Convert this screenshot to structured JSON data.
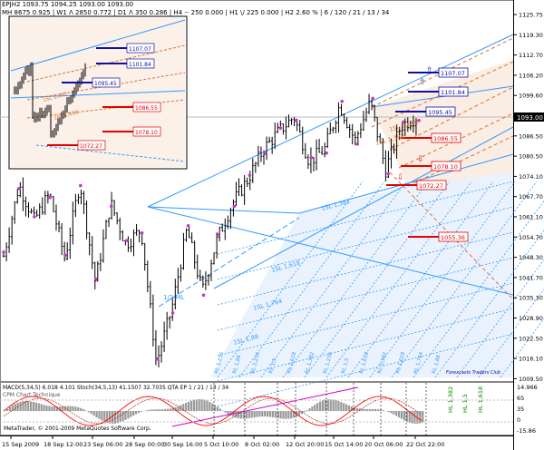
{
  "header": {
    "line1": "EPJH2  1093.75  1094.25  1093.00  1093.00",
    "line2": "MH 8675  0.925  |  W1 Λ 2850  0.772  |  D1 Λ 350  0.286  |  H4 -- 250  0.000  |  H1 \\/ 225  0.000  |  H2  2.60 %  |  6 / 120 / 21 / 13 / 34"
  },
  "colors": {
    "candle": "#000000",
    "fork_blue": "#3399ff",
    "fork_orange": "#e07030",
    "grid": "#888888",
    "marker": "#cc33cc",
    "sell_red": "#e00000",
    "buy_blue": "#1010a0",
    "macd_hist": "#999999",
    "stoch_red": "#ff0000",
    "signal_magenta": "#cc00cc"
  },
  "price_tag": "1093.00",
  "level_labels": [
    {
      "text": "1107.07",
      "color": "#1010a0"
    },
    {
      "text": "1101.84",
      "color": "#1010a0"
    },
    {
      "text": "1095.45",
      "color": "#1010a0"
    },
    {
      "text": "1086.55",
      "color": "#e00000"
    },
    {
      "text": "1078.10",
      "color": "#e00000"
    },
    {
      "text": "1072.27",
      "color": "#e00000"
    },
    {
      "text": "1055.36",
      "color": "#e00000"
    }
  ],
  "fork_labels": [
    "1SL 1,382",
    "1SL 1,618",
    "1SL 1,618",
    "1SL 1,764",
    "1SL 1,88",
    "1/2 ML",
    "1SL 1,382"
  ],
  "bottom_fork_labels": [
    "RL 1,236",
    "RL 1,88",
    "RL 2,236",
    "RL 1,5",
    "RL 2,618",
    "RL 1,382",
    "RL 1,236",
    "RL 1,5",
    "RL 1,618",
    "RL 1,382",
    "RL 1,618",
    "RL 1,764",
    "RL 1,88"
  ],
  "hl_labels": [
    "HL 1,382",
    "HL 1,5",
    "HL 1,618"
  ],
  "indicator": {
    "title": "MACD(5,34,5) 6.018 4.101  Stoch(34,5,13) 41.1507 32.7035  QTA EP 1 / 21 / 13 / 34",
    "sub": "CPM Chart Technique",
    "scale": [
      "14.966",
      "65",
      "35",
      "0",
      "-15.86"
    ]
  },
  "inset_labels": [
    "1107.07",
    "1101.84",
    "1095.45",
    "1086.55",
    "1078.10",
    "1072.27",
    "1SL 1,382",
    "1SL 1,618"
  ],
  "watermark": "Forexcasts Traders Club",
  "copyright": "MetaTrader, © 2001-2009 MetaQuotes Software Corp.",
  "chart_data": {
    "type": "candlestick",
    "symbol": "EPJH2",
    "y_ticks": [
      "1125.75",
      "1119.30",
      "1112.70",
      "1106.20",
      "1099.60",
      "1093.00",
      "1086.50",
      "1080.50",
      "1074.10",
      "1067.70",
      "1061.10",
      "1054.70",
      "1048.30",
      "1041.70",
      "1035.30",
      "1028.90",
      "1022.50",
      "1016.10",
      "1009.50"
    ],
    "x_ticks": [
      "15 Sep 2009",
      "18 Sep 12:00",
      "23 Sep 06:00",
      "28 Sep 00:00",
      "30 Sep 16:00",
      "5 Oct 10:00",
      "8 Oct 02:00",
      "12 Oct 20:00",
      "15 Oct 14:00",
      "20 Oct 06:00",
      "22 Oct 22:00"
    ],
    "ylim": [
      1005,
      1130
    ],
    "last_price": 1093.0,
    "swing_path": [
      {
        "x": "15 Sep 2009",
        "y": 1046
      },
      {
        "x": "16 Sep",
        "y": 1070
      },
      {
        "x": "17 Sep",
        "y": 1058
      },
      {
        "x": "18 Sep 12:00",
        "y": 1067
      },
      {
        "x": "21 Sep",
        "y": 1045
      },
      {
        "x": "23 Sep 06:00",
        "y": 1071
      },
      {
        "x": "25 Sep",
        "y": 1037
      },
      {
        "x": "28 Sep 00:00",
        "y": 1064
      },
      {
        "x": "29 Sep",
        "y": 1050
      },
      {
        "x": "30 Sep",
        "y": 1055
      },
      {
        "x": "30 Sep 16:00",
        "y": 1010
      },
      {
        "x": "2 Oct",
        "y": 1028
      },
      {
        "x": "4 Oct",
        "y": 1055
      },
      {
        "x": "5 Oct 10:00",
        "y": 1034
      },
      {
        "x": "6 Oct",
        "y": 1052
      },
      {
        "x": "8 Oct 02:00",
        "y": 1064
      },
      {
        "x": "10 Oct",
        "y": 1072
      },
      {
        "x": "12 Oct 20:00",
        "y": 1082
      },
      {
        "x": "13 Oct",
        "y": 1088
      },
      {
        "x": "14 Oct",
        "y": 1093
      },
      {
        "x": "15 Oct",
        "y": 1078
      },
      {
        "x": "15 Oct 14:00",
        "y": 1082
      },
      {
        "x": "17 Oct",
        "y": 1097
      },
      {
        "x": "19 Oct",
        "y": 1085
      },
      {
        "x": "20 Oct 06:00",
        "y": 1098
      },
      {
        "x": "21 Oct",
        "y": 1075
      },
      {
        "x": "22 Oct",
        "y": 1090
      },
      {
        "x": "22 Oct 22:00",
        "y": 1093
      }
    ]
  }
}
